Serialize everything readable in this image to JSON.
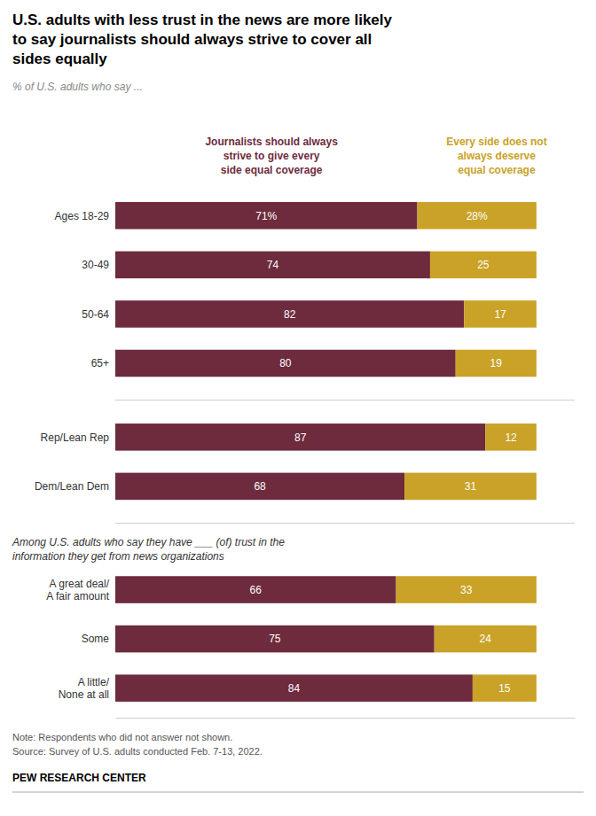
{
  "chart_data": {
    "type": "bar",
    "orientation": "horizontal",
    "stacked": true,
    "title": "U.S. adults with less trust in the news are more likely\nto say journalists should always strive to cover all\nsides equally",
    "subtitle": "% of U.S. adults who say ...",
    "categories": [
      "Ages 18-29",
      "30-49",
      "50-64",
      "65+",
      "Rep/Lean Rep",
      "Dem/Lean Dem",
      "A great deal/\nA fair amount",
      "Some",
      "A little/\nNone at all"
    ],
    "series": [
      {
        "name": "Journalists should always\nstrive to give every\nside equal coverage",
        "color": "#6d2b3d",
        "values": [
          71,
          74,
          82,
          80,
          87,
          68,
          66,
          75,
          84
        ],
        "value_labels": [
          "71%",
          "74",
          "82",
          "80",
          "87",
          "68",
          "66",
          "75",
          "84"
        ]
      },
      {
        "name": "Every side does not\nalways deserve\nequal coverage",
        "color": "#c9a227",
        "values": [
          28,
          25,
          17,
          19,
          12,
          31,
          33,
          24,
          15
        ],
        "value_labels": [
          "28%",
          "25",
          "17",
          "19",
          "12",
          "31",
          "33",
          "24",
          "15"
        ]
      }
    ],
    "xlim": [
      0,
      108
    ],
    "tick_labels": "y",
    "data_labels": true,
    "grid": false,
    "legend": "top",
    "annotations": [
      "Among U.S. adults who say they have ___ (of) trust in the\ninformation they get from news organizations",
      "Note: Respondents who did not answer not shown.\nSource: Survey of U.S. adults conducted Feb. 7-13, 2022.",
      "PEW RESEARCH CENTER"
    ]
  }
}
